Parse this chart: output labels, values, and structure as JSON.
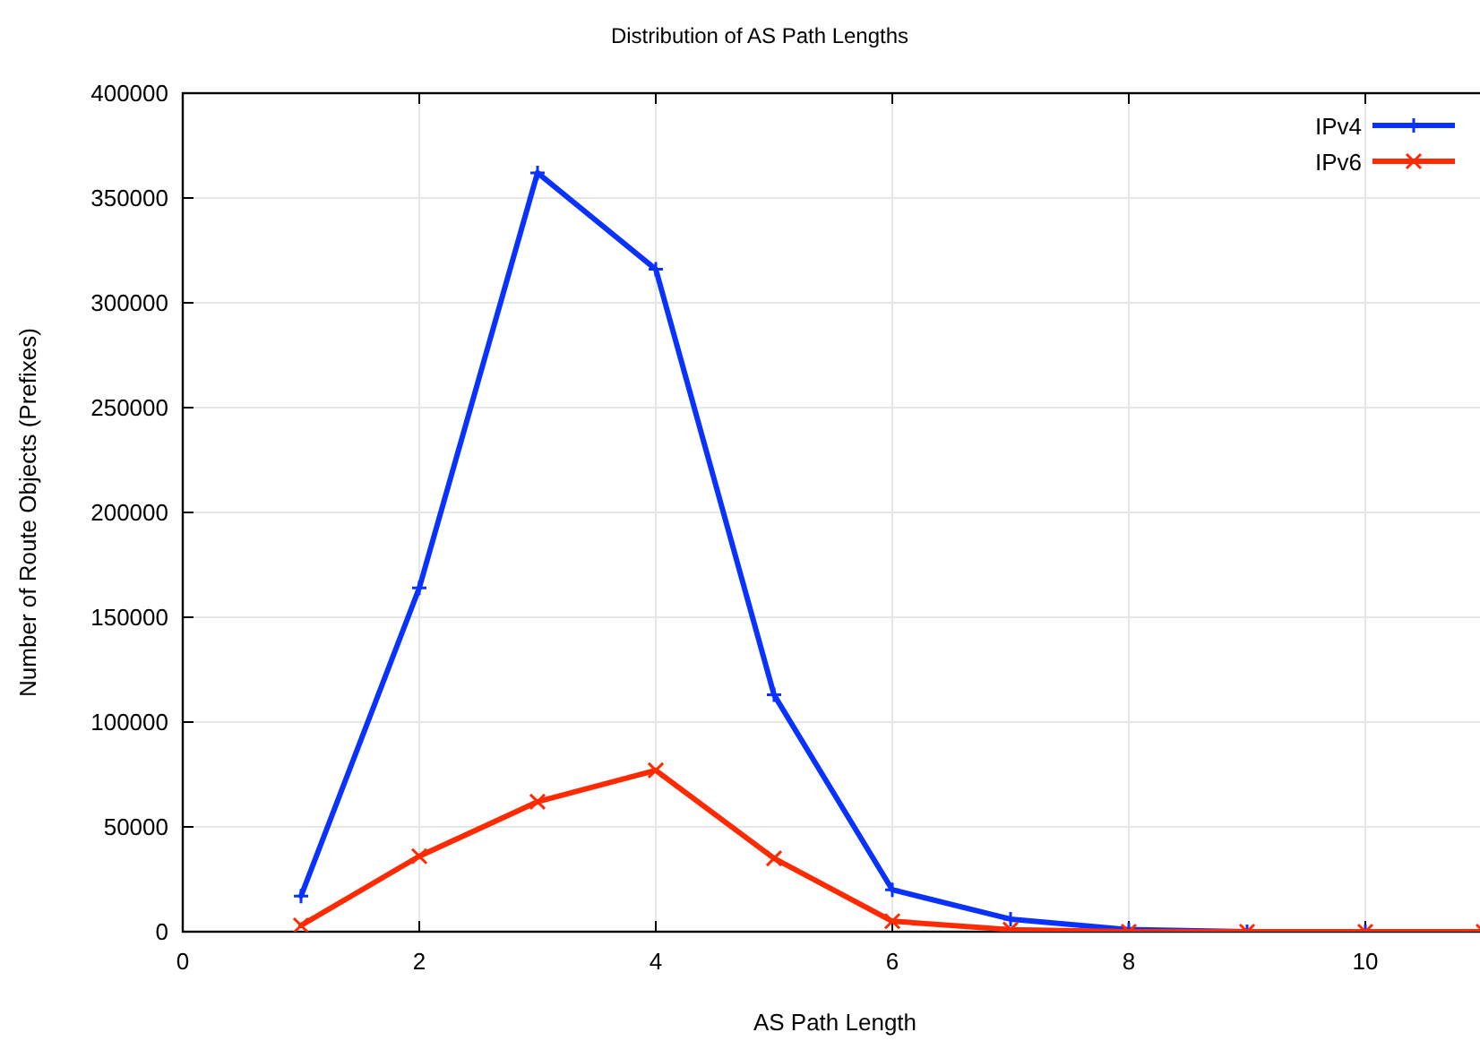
{
  "chart_data": {
    "type": "line",
    "title": "Distribution of AS Path Lengths",
    "xlabel": "AS Path Length",
    "ylabel": "Number of Route Objects (Prefixes)",
    "x": [
      1,
      2,
      3,
      4,
      5,
      6,
      7,
      8,
      9,
      10,
      11
    ],
    "series": [
      {
        "name": "IPv4",
        "color": "#0a32ff",
        "marker": "plus",
        "values": [
          17000,
          164000,
          362000,
          316000,
          113000,
          20000,
          6000,
          1000,
          0,
          0,
          0
        ]
      },
      {
        "name": "IPv6",
        "color": "#ff2a00",
        "marker": "cross",
        "values": [
          3000,
          36000,
          62000,
          77000,
          35000,
          5000,
          1000,
          0,
          0,
          0,
          0
        ]
      }
    ],
    "xlim": [
      0,
      11
    ],
    "xticks": [
      0,
      2,
      4,
      6,
      8,
      10
    ],
    "ylim": [
      0,
      400000
    ],
    "yticks": [
      0,
      50000,
      100000,
      150000,
      200000,
      250000,
      300000,
      350000,
      400000
    ],
    "grid": true,
    "legend": "top right"
  }
}
